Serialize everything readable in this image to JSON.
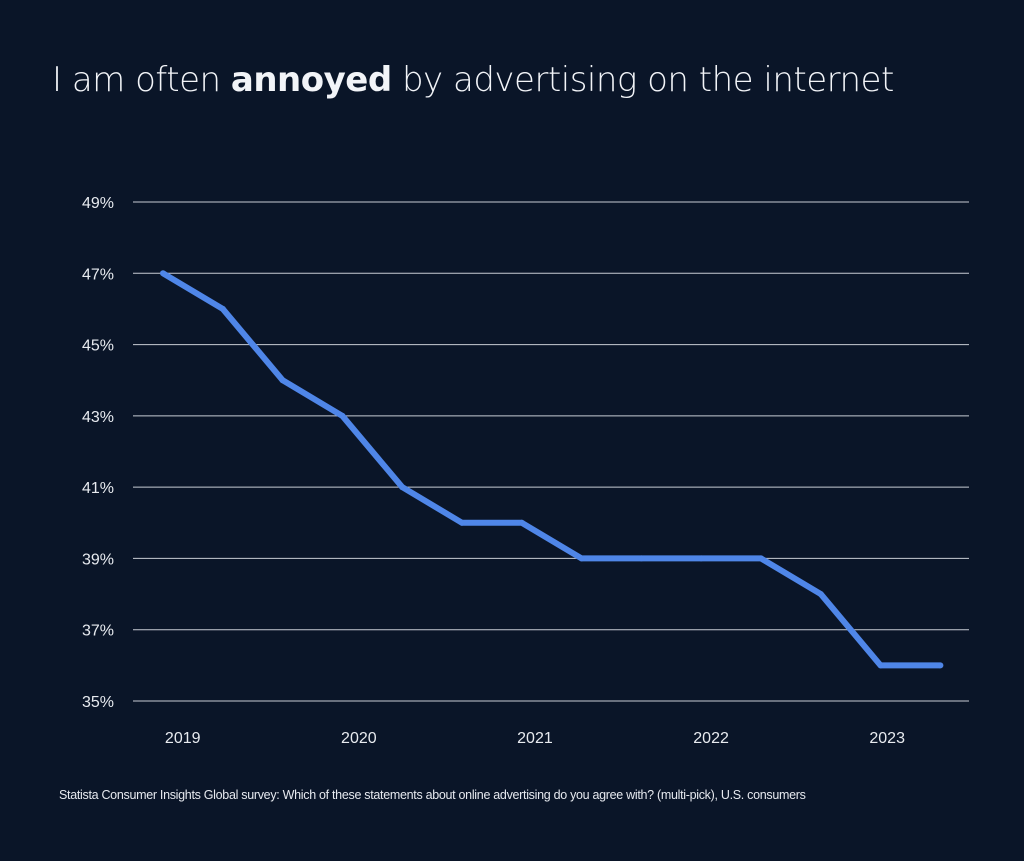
{
  "title": {
    "prefix": "I am often ",
    "bold": "annoyed",
    "suffix": " by advertising on the internet"
  },
  "footer": "Statista Consumer Insights Global survey: Which of these statements about online advertising do you agree with? (multi-pick), U.S. consumers",
  "chart_data": {
    "type": "line",
    "title": "I am often annoyed by advertising on the internet",
    "xlabel": "",
    "ylabel": "",
    "x_tick_labels": [
      "2019",
      "2020",
      "2021",
      "2022",
      "2023"
    ],
    "y_tick_labels": [
      "35%",
      "37%",
      "39%",
      "41%",
      "43%",
      "45%",
      "47%",
      "49%"
    ],
    "ylim": [
      35,
      49
    ],
    "grid": true,
    "values": [
      47,
      46,
      44,
      43,
      41,
      40,
      40,
      39,
      39,
      39,
      39,
      38,
      36,
      36
    ],
    "unit": "%",
    "colors": {
      "background": "#0a1528",
      "line": "#4f86e8",
      "grid": "#c8ccd4"
    }
  }
}
